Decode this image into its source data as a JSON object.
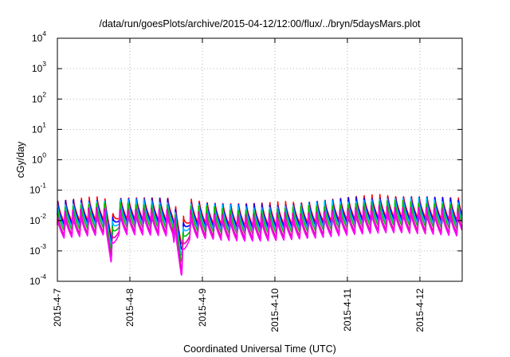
{
  "chart_data": {
    "type": "line",
    "title": "/data/run/goesPlots/archive/2015-04-12/12:00/flux/../bryn/5daysMars.plot",
    "xlabel": "Coordinated Universal Time (UTC)",
    "ylabel": "cGy/day",
    "yscale": "log",
    "ylim": [
      0.0001,
      10000
    ],
    "xlim": [
      "2015-04-07 00:00",
      "2015-04-12 14:00"
    ],
    "x_ticks": [
      "2015-4-7",
      "2015-4-8",
      "2015-4-9",
      "2015-4-10",
      "2015-4-11",
      "2015-4-12"
    ],
    "y_ticks": [
      {
        "base": "10",
        "exp": "-4"
      },
      {
        "base": "10",
        "exp": "-3"
      },
      {
        "base": "10",
        "exp": "-2"
      },
      {
        "base": "10",
        "exp": "-1"
      },
      {
        "base": "10",
        "exp": "0"
      },
      {
        "base": "10",
        "exp": "1"
      },
      {
        "base": "10",
        "exp": "2"
      },
      {
        "base": "10",
        "exp": "3"
      },
      {
        "base": "10",
        "exp": "4"
      }
    ],
    "grid": true,
    "pattern": "sawtooth, period ≈ 2.6 h (about 9 cycles per day)",
    "series": [
      {
        "color": "#ff0000",
        "peak": 0.05,
        "trough": 0.007
      },
      {
        "color": "#0000ff",
        "peak": 0.045,
        "trough": 0.006
      },
      {
        "color": "#00bfff",
        "peak": 0.04,
        "trough": 0.005
      },
      {
        "color": "#00c000",
        "peak": 0.032,
        "trough": 0.004
      },
      {
        "color": "#e000a0",
        "peak": 0.022,
        "trough": 0.003
      },
      {
        "color": "#ff00ff",
        "peak": 0.018,
        "trough": 0.0025
      }
    ],
    "dips": [
      {
        "date": "2015-4-7",
        "label": "dip near 2015-4-7 18:00",
        "min": 0.0005
      },
      {
        "date": "2015-4-8",
        "label": "dip near 2015-4-8 17:00",
        "min": 0.00025
      }
    ]
  }
}
